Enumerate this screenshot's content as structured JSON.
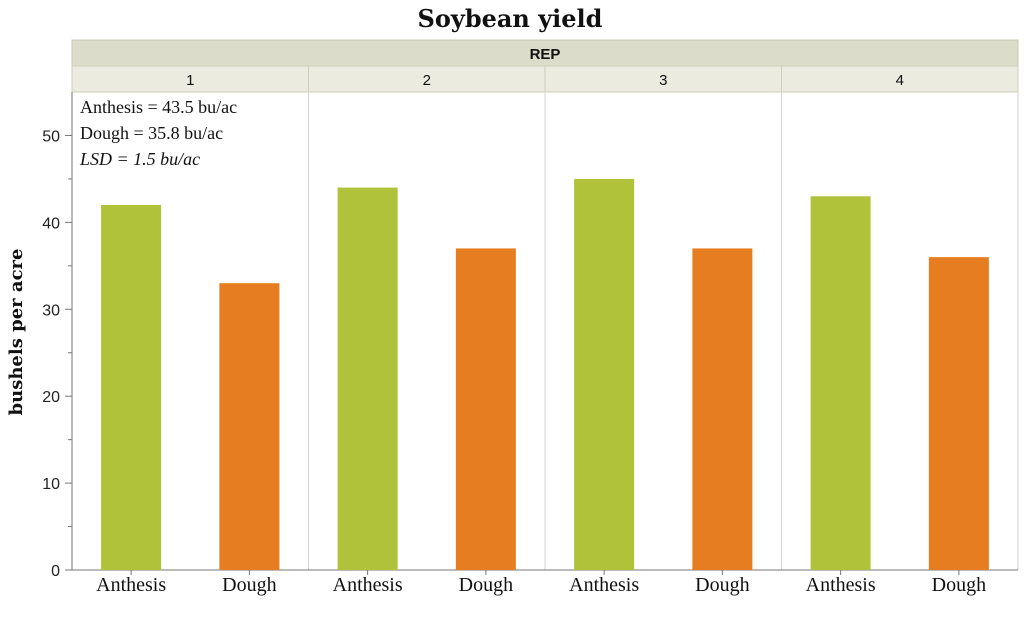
{
  "chart_data": {
    "type": "bar",
    "title": "Soybean yield",
    "ylabel": "bushels per acre",
    "xlabel": "",
    "facet_label": "REP",
    "panels": [
      "1",
      "2",
      "3",
      "4"
    ],
    "categories": [
      "Anthesis",
      "Dough"
    ],
    "values": [
      [
        42,
        33
      ],
      [
        44,
        37
      ],
      [
        45,
        37
      ],
      [
        43,
        36
      ]
    ],
    "ylim": [
      0,
      55
    ],
    "yticks": [
      0,
      10,
      20,
      30,
      40,
      50
    ],
    "annotations": [
      "Anthesis = 43.5 bu/ac",
      "Dough = 35.8 bu/ac",
      "LSD = 1.5 bu/ac"
    ],
    "grid": false
  },
  "colors": {
    "Anthesis": "#afc23a",
    "Dough": "#e67e21",
    "strip_header": "#dcdccb",
    "strip_panel": "#ebebe0"
  }
}
